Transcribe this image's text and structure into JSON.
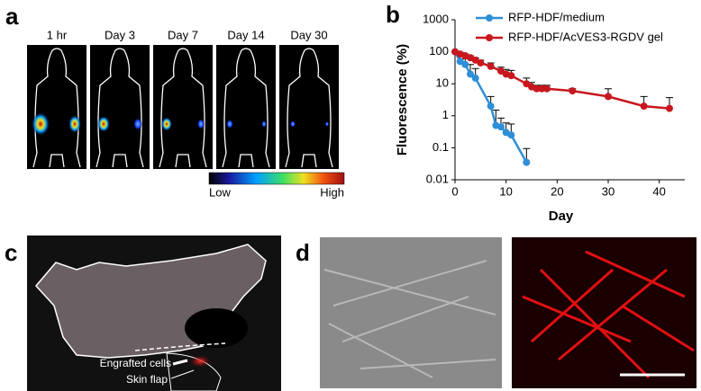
{
  "panel_labels": [
    "a",
    "b",
    "c",
    "d"
  ],
  "panel_a": {
    "timepoints": [
      "1 hr",
      "Day 3",
      "Day 7",
      "Day 14",
      "Day 30"
    ],
    "scale_low": "Low",
    "scale_high": "High"
  },
  "chart_data": {
    "type": "line",
    "y_label": "Fluorescence (%)",
    "x_label": "Day",
    "y_log": true,
    "ylim": [
      0.01,
      1000
    ],
    "yticks": [
      0.01,
      0.1,
      1,
      10,
      100,
      1000
    ],
    "xlim": [
      0,
      45
    ],
    "xticks": [
      0,
      10,
      20,
      30,
      40
    ],
    "legend": "top-right",
    "series": [
      {
        "name": "RFP-HDF/medium",
        "color": "#2f8fd8",
        "x": [
          0,
          1,
          2,
          3,
          4,
          7,
          8,
          9,
          10,
          11,
          14
        ],
        "values": [
          100,
          50,
          40,
          20,
          15,
          2,
          0.5,
          0.45,
          0.3,
          0.25,
          0.035
        ],
        "errors": [
          0,
          20,
          20,
          20,
          15,
          2,
          1,
          0.4,
          0.3,
          0.3,
          0.06
        ]
      },
      {
        "name": "RFP-HDF/AcVES3-RGDV gel",
        "color": "#c8171e",
        "x": [
          0,
          1,
          2,
          3,
          4,
          5,
          7,
          9,
          10,
          11,
          14,
          15,
          16,
          17,
          18,
          23,
          30,
          37,
          42
        ],
        "values": [
          100,
          85,
          75,
          65,
          55,
          45,
          35,
          25,
          20,
          18,
          10,
          8,
          7,
          7,
          7,
          6,
          4,
          2,
          1.7
        ],
        "errors": [
          0,
          10,
          10,
          10,
          10,
          10,
          10,
          8,
          8,
          8,
          5,
          3,
          2,
          2,
          2,
          1,
          3,
          2,
          2
        ]
      }
    ]
  },
  "panel_c": {
    "labels": [
      "Engrafted cells",
      "Skin flap"
    ]
  }
}
